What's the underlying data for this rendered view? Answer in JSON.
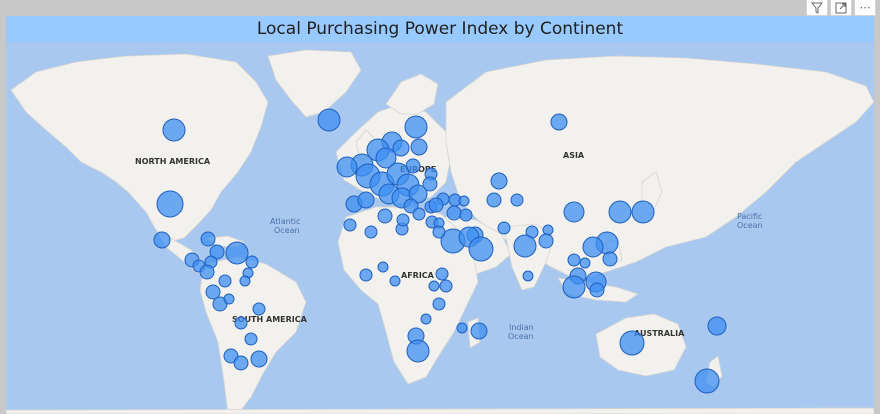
{
  "visual": {
    "title": "Local Purchasing Power Index by Continent"
  },
  "toolbar": {
    "filter_icon": "filter-icon",
    "focus_icon": "focus-mode-icon",
    "more_icon": "more-options-icon",
    "more_label": "⋯"
  },
  "map": {
    "continent_labels": [
      "NORTH AMERICA",
      "SOUTH AMERICA",
      "EUROPE",
      "AFRICA",
      "ASIA",
      "AUSTRALIA"
    ],
    "ocean_labels": [
      {
        "line1": "Atlantic",
        "line2": "Ocean"
      },
      {
        "line1": "Pacific",
        "line2": "Ocean"
      },
      {
        "line1": "Indian",
        "line2": "Ocean"
      }
    ],
    "colors": {
      "bubble_fill": "#3d8ff2",
      "bubble_stroke": "#1f5fbf",
      "water": "#a9c8ef",
      "land": "#f2f1ee",
      "title_bar": "#99caff"
    }
  }
}
